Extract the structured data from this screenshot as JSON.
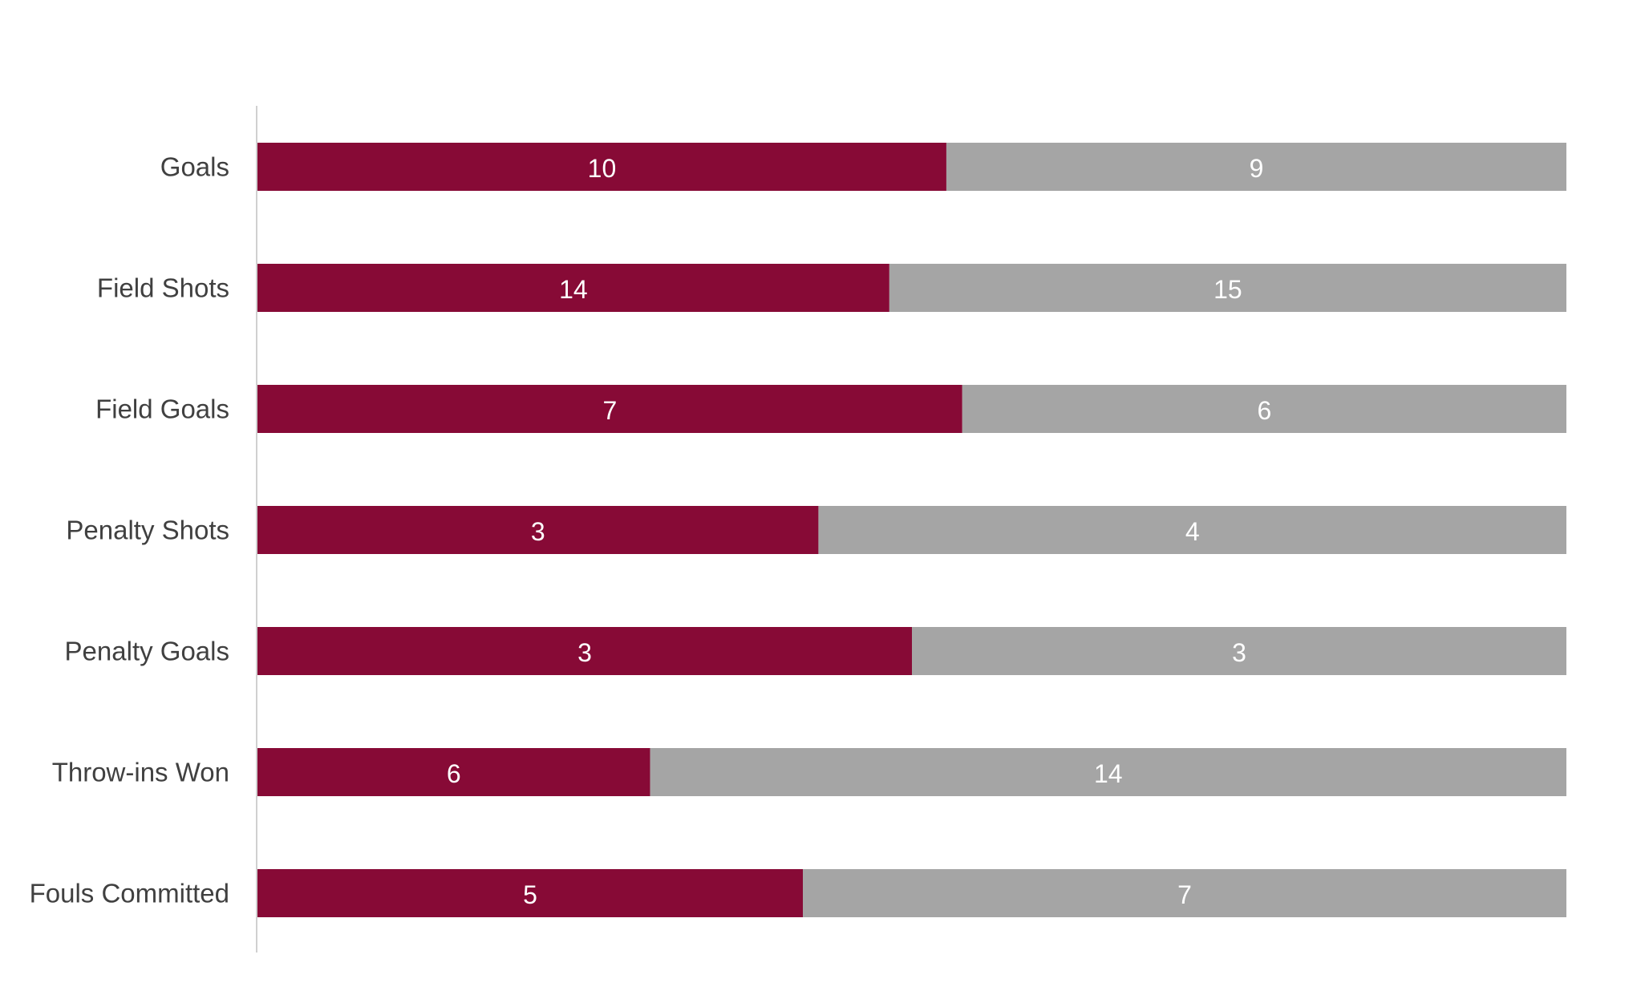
{
  "chart_data": {
    "type": "bar",
    "orientation": "horizontal",
    "stacked": "100%",
    "title": "",
    "xlabel": "",
    "ylabel": "",
    "categories": [
      "Goals",
      "Field Shots",
      "Field Goals",
      "Penalty Shots",
      "Penalty Goals",
      "Throw-ins Won",
      "Fouls Committed"
    ],
    "series": [
      {
        "values": [
          10,
          14,
          7,
          3,
          3,
          6,
          5
        ],
        "color": "#870a36"
      },
      {
        "values": [
          9,
          15,
          6,
          4,
          3,
          14,
          7
        ],
        "color": "#a5a5a5"
      }
    ],
    "data_labels": true,
    "legend": "none",
    "grid": false
  }
}
